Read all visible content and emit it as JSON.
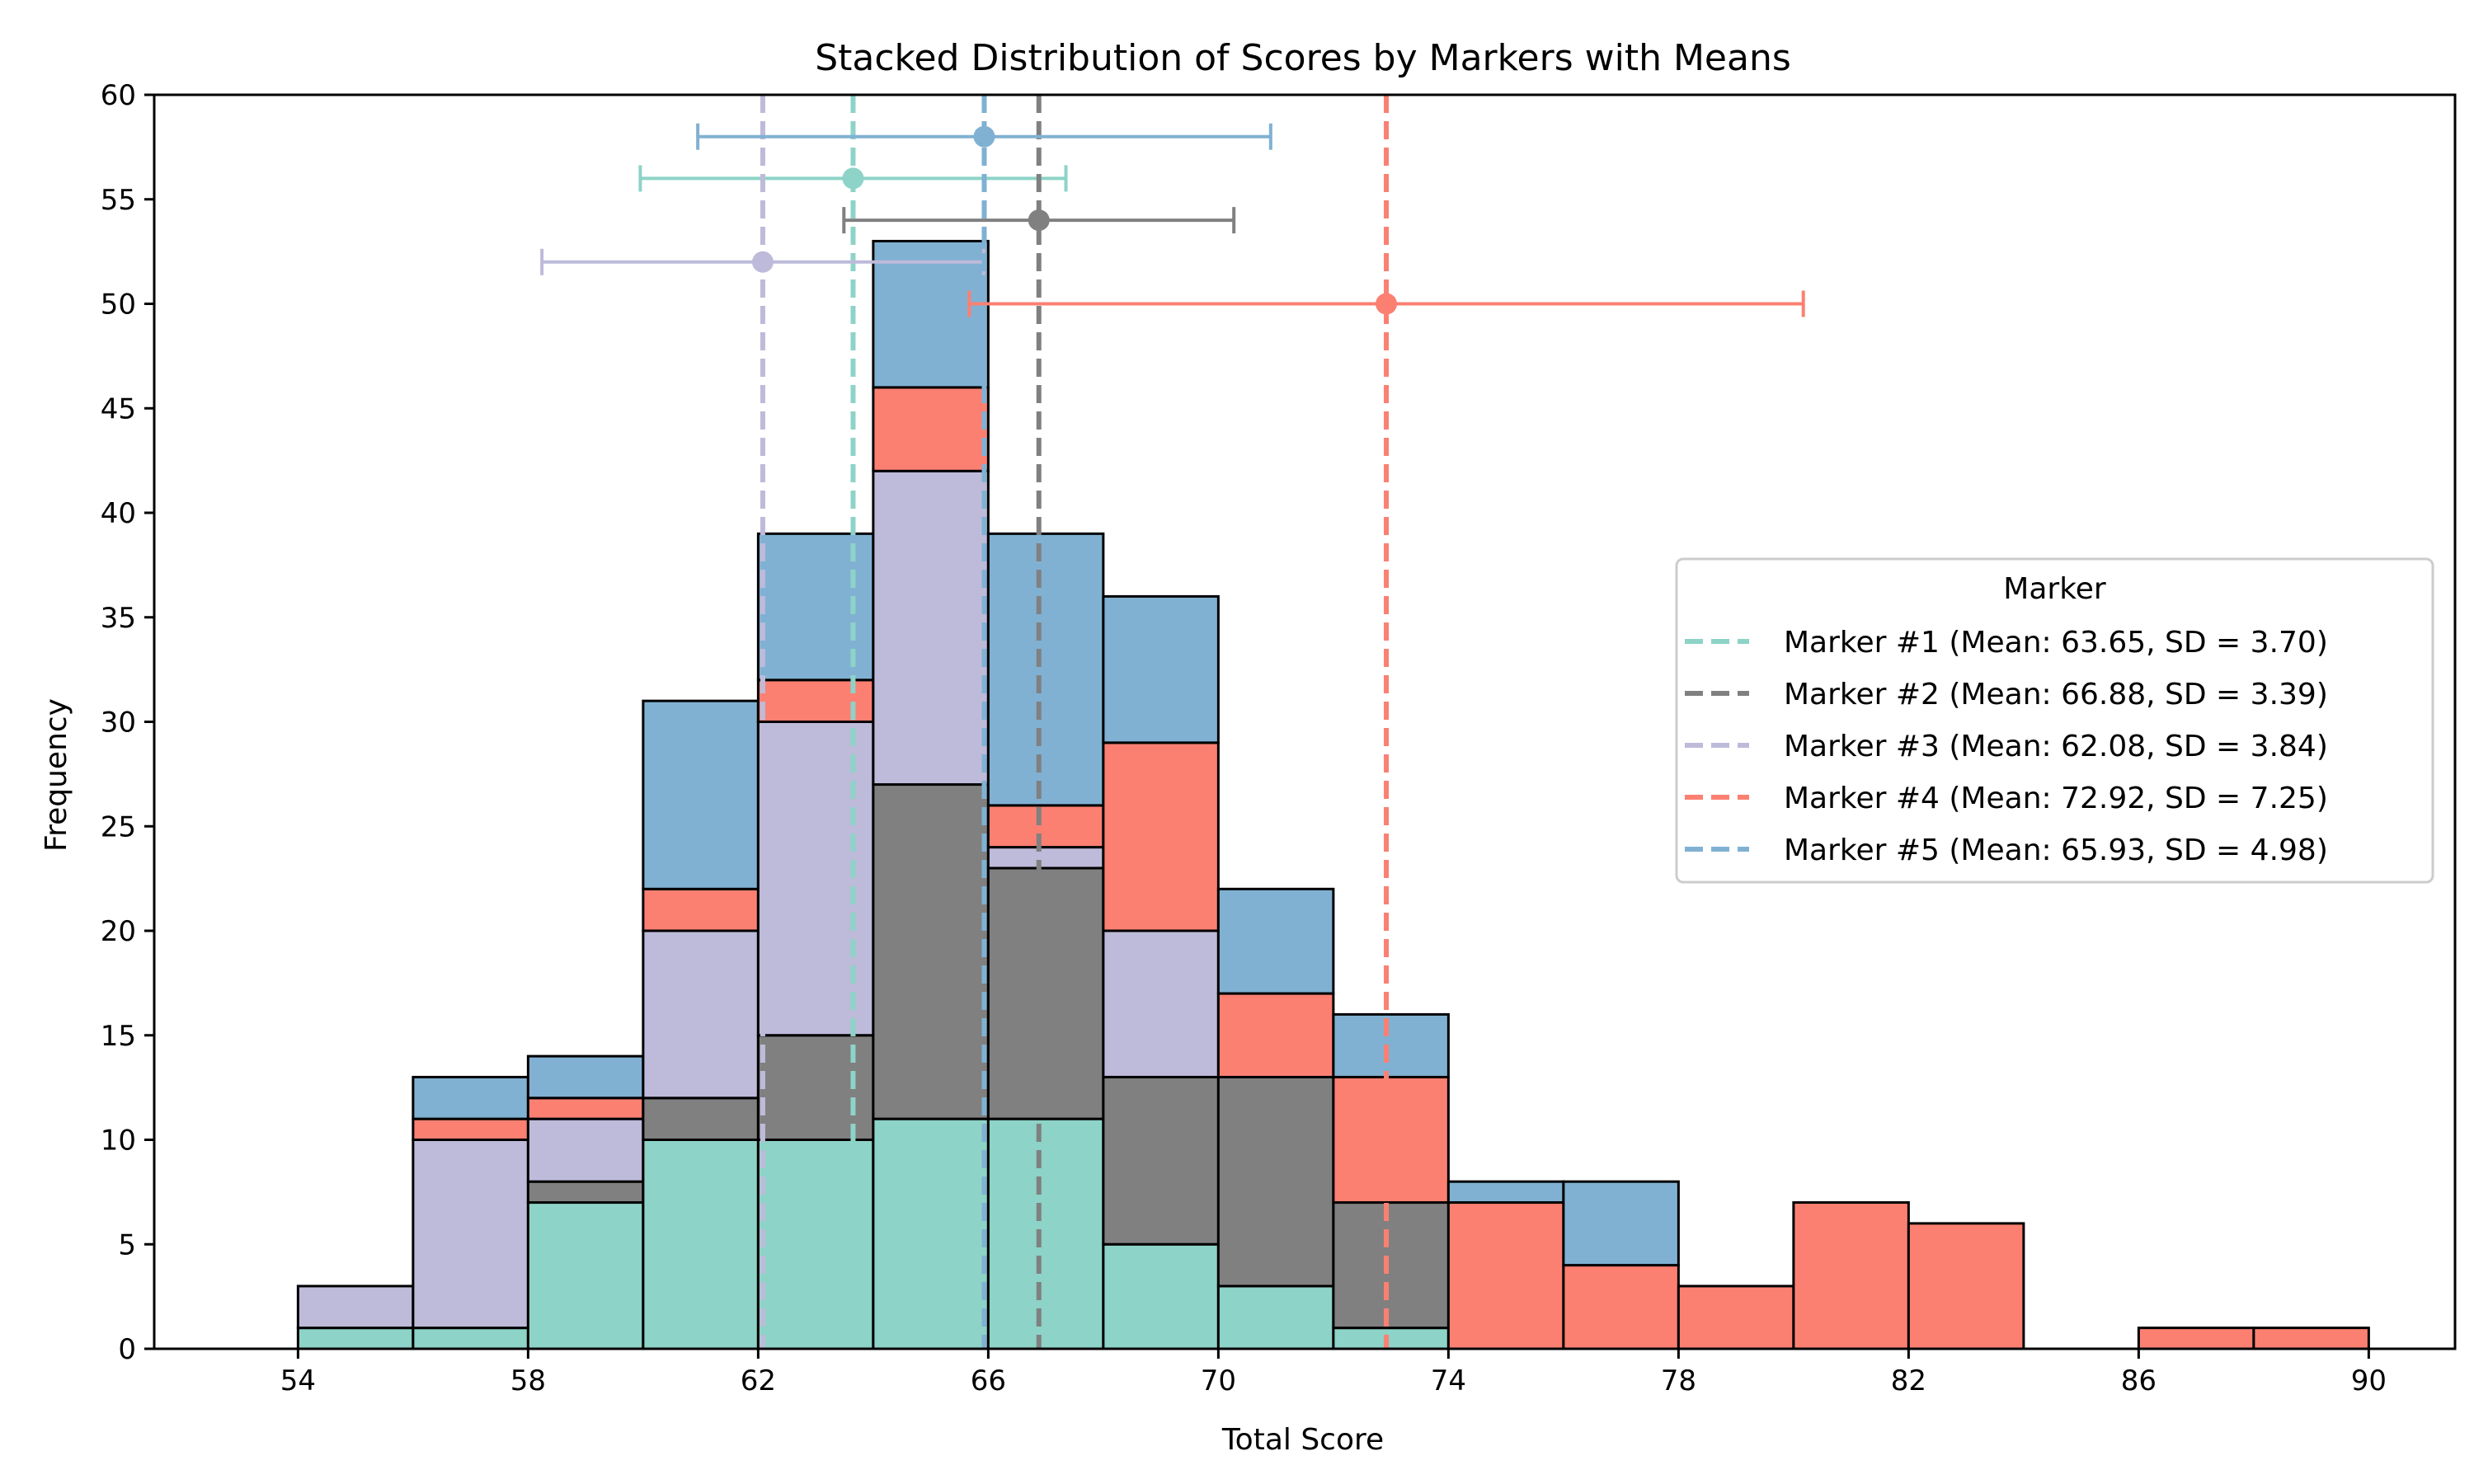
{
  "chart_data": {
    "type": "bar",
    "stacked": true,
    "title": "Stacked Distribution of Scores by Markers with Means",
    "xlabel": "Total Score",
    "ylabel": "Frequency",
    "xlim": [
      51.5,
      91.5
    ],
    "ylim": [
      0,
      60
    ],
    "xticks": [
      "54",
      "58",
      "62",
      "66",
      "70",
      "74",
      "78",
      "82",
      "86",
      "90"
    ],
    "yticks": [
      "0",
      "5",
      "10",
      "15",
      "20",
      "25",
      "30",
      "35",
      "40",
      "45",
      "50",
      "55",
      "60"
    ],
    "bin_edges": [
      54,
      56,
      58,
      60,
      62,
      64,
      66,
      68,
      70,
      72,
      74,
      76,
      78,
      80,
      82,
      84,
      86,
      88,
      90
    ],
    "series": [
      {
        "name": "Marker #1",
        "color": "#8dd3c7",
        "values": [
          1,
          1,
          7,
          10,
          10,
          11,
          11,
          5,
          3,
          1,
          0,
          0,
          0,
          0,
          0,
          0,
          0,
          0
        ]
      },
      {
        "name": "Marker #2",
        "color": "#808080",
        "values": [
          0,
          0,
          1,
          2,
          5,
          16,
          12,
          8,
          10,
          6,
          0,
          0,
          0,
          0,
          0,
          0,
          0,
          0
        ]
      },
      {
        "name": "Marker #3",
        "color": "#bebada",
        "values": [
          2,
          9,
          3,
          8,
          15,
          15,
          1,
          7,
          0,
          0,
          0,
          0,
          0,
          0,
          0,
          0,
          0,
          0
        ]
      },
      {
        "name": "Marker #4",
        "color": "#fb8072",
        "values": [
          0,
          1,
          1,
          2,
          2,
          4,
          2,
          9,
          4,
          6,
          7,
          4,
          3,
          7,
          6,
          0,
          1,
          1
        ]
      },
      {
        "name": "Marker #5",
        "color": "#80b1d3",
        "values": [
          0,
          2,
          2,
          9,
          7,
          7,
          13,
          7,
          5,
          3,
          1,
          4,
          0,
          0,
          0,
          0,
          0,
          0
        ]
      }
    ],
    "means": [
      {
        "mean": 63.65,
        "sd": 3.7,
        "y": 56
      },
      {
        "mean": 66.88,
        "sd": 3.39,
        "y": 54
      },
      {
        "mean": 62.08,
        "sd": 3.84,
        "y": 52
      },
      {
        "mean": 72.92,
        "sd": 7.25,
        "y": 50
      },
      {
        "mean": 65.93,
        "sd": 4.98,
        "y": 58
      }
    ],
    "legend": {
      "title": "Marker",
      "position": "center-right",
      "entries": [
        "Marker #1 (Mean: 63.65, SD = 3.70)",
        "Marker #2 (Mean: 66.88, SD = 3.39)",
        "Marker #3 (Mean: 62.08, SD = 3.84)",
        "Marker #4 (Mean: 72.92, SD = 7.25)",
        "Marker #5 (Mean: 65.93, SD = 4.98)"
      ]
    }
  }
}
